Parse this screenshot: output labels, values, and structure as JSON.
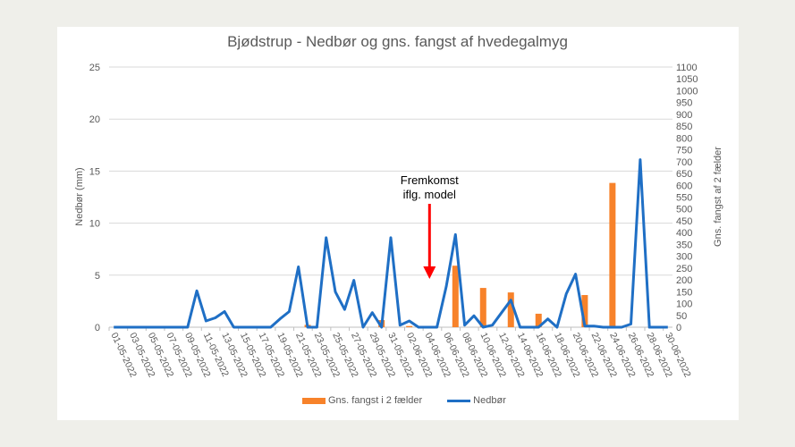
{
  "chart_data": {
    "type": "bar+line",
    "title": "Bjødstrup - Nedbør og gns. fangst af hvedegalmyg",
    "xlabel": "",
    "ylabel": "Nedbør (mm)",
    "y2label": "Gns. fangst af 2 fælder",
    "ylim": [
      0,
      25
    ],
    "y2lim": [
      0,
      1100
    ],
    "yticks": [
      0,
      5,
      10,
      15,
      20,
      25
    ],
    "y2ticks": [
      0,
      50,
      100,
      150,
      200,
      250,
      300,
      350,
      400,
      450,
      500,
      550,
      600,
      650,
      700,
      750,
      800,
      850,
      900,
      950,
      1000,
      1050,
      1100
    ],
    "grid": true,
    "legend_position": "bottom",
    "x": [
      "01-05-2022",
      "02-05-2022",
      "03-05-2022",
      "04-05-2022",
      "05-05-2022",
      "06-05-2022",
      "07-05-2022",
      "08-05-2022",
      "09-05-2022",
      "10-05-2022",
      "11-05-2022",
      "12-05-2022",
      "13-05-2022",
      "14-05-2022",
      "15-05-2022",
      "16-05-2022",
      "17-05-2022",
      "18-05-2022",
      "19-05-2022",
      "20-05-2022",
      "21-05-2022",
      "22-05-2022",
      "23-05-2022",
      "24-05-2022",
      "25-05-2022",
      "26-05-2022",
      "27-05-2022",
      "28-05-2022",
      "29-05-2022",
      "30-05-2022",
      "31-05-2022",
      "01-06-2022",
      "02-06-2022",
      "03-06-2022",
      "04-06-2022",
      "05-06-2022",
      "06-06-2022",
      "07-06-2022",
      "08-06-2022",
      "09-06-2022",
      "10-06-2022",
      "11-06-2022",
      "12-06-2022",
      "13-06-2022",
      "14-06-2022",
      "15-06-2022",
      "16-06-2022",
      "17-06-2022",
      "18-06-2022",
      "19-06-2022",
      "20-06-2022",
      "21-06-2022",
      "22-06-2022",
      "23-06-2022",
      "24-06-2022",
      "25-06-2022",
      "26-06-2022",
      "27-06-2022",
      "28-06-2022",
      "29-06-2022",
      "30-06-2022"
    ],
    "tick_labels": [
      "01-05-2022",
      "03-05-2022",
      "05-05-2022",
      "07-05-2022",
      "09-05-2022",
      "11-05-2022",
      "13-05-2022",
      "15-05-2022",
      "17-05-2022",
      "19-05-2022",
      "21-05-2022",
      "23-05-2022",
      "25-05-2022",
      "27-05-2022",
      "29-05-2022",
      "31-05-2022",
      "02-06-2022",
      "04-06-2022",
      "06-06-2022",
      "08-06-2022",
      "10-06-2022",
      "12-06-2022",
      "14-06-2022",
      "16-06-2022",
      "18-06-2022",
      "20-06-2022",
      "22-06-2022",
      "24-06-2022",
      "26-06-2022",
      "28-06-2022",
      "30-06-2022"
    ],
    "series": [
      {
        "name": "Gns. fangst i 2 fælder",
        "type": "bar",
        "axis": "right",
        "color": "#f7822a",
        "values": [
          0,
          0,
          0,
          0,
          0,
          0,
          0,
          0,
          0,
          0,
          0,
          0,
          0,
          0,
          0,
          0,
          0,
          0,
          0,
          0,
          0,
          10,
          0,
          0,
          0,
          0,
          0,
          0,
          0,
          30,
          0,
          0,
          5,
          0,
          0,
          0,
          0,
          260,
          0,
          0,
          166,
          0,
          0,
          147,
          0,
          0,
          57,
          0,
          0,
          0,
          0,
          136,
          0,
          0,
          610,
          0,
          0,
          0,
          0,
          0,
          0
        ]
      },
      {
        "name": "Nedbør",
        "type": "line",
        "axis": "left",
        "color": "#1f6fc5",
        "values": [
          0,
          0,
          0,
          0,
          0,
          0,
          0,
          0,
          0,
          3.5,
          0.6,
          0.9,
          1.5,
          0,
          0,
          0,
          0,
          0,
          0.8,
          1.5,
          5.8,
          0,
          0,
          8.6,
          3.4,
          1.7,
          4.5,
          0,
          1.4,
          0,
          8.6,
          0.2,
          0.6,
          0,
          0,
          0,
          3.9,
          8.9,
          0.2,
          1.1,
          0,
          0.2,
          1.4,
          2.6,
          0,
          0,
          0,
          0.8,
          0,
          3.2,
          5.1,
          0.1,
          0.1,
          0,
          0,
          0,
          0.3,
          16.1,
          0,
          0,
          0
        ]
      }
    ],
    "annotations": [
      {
        "text_line1": "Fremkomst",
        "text_line2": "iflg. model",
        "arrow_at": "04-06-2022",
        "arrow_color": "#ff0000"
      }
    ]
  },
  "title": "Bjødstrup - Nedbør og gns. fangst af hvedegalmyg",
  "legend": {
    "bar_label": "Gns. fangst i 2 fælder",
    "line_label": "Nedbør"
  },
  "colors": {
    "bar": "#f7822a",
    "line": "#1f6fc5",
    "arrow": "#ff0000",
    "grid": "#d9d9d9",
    "text": "#595959"
  }
}
